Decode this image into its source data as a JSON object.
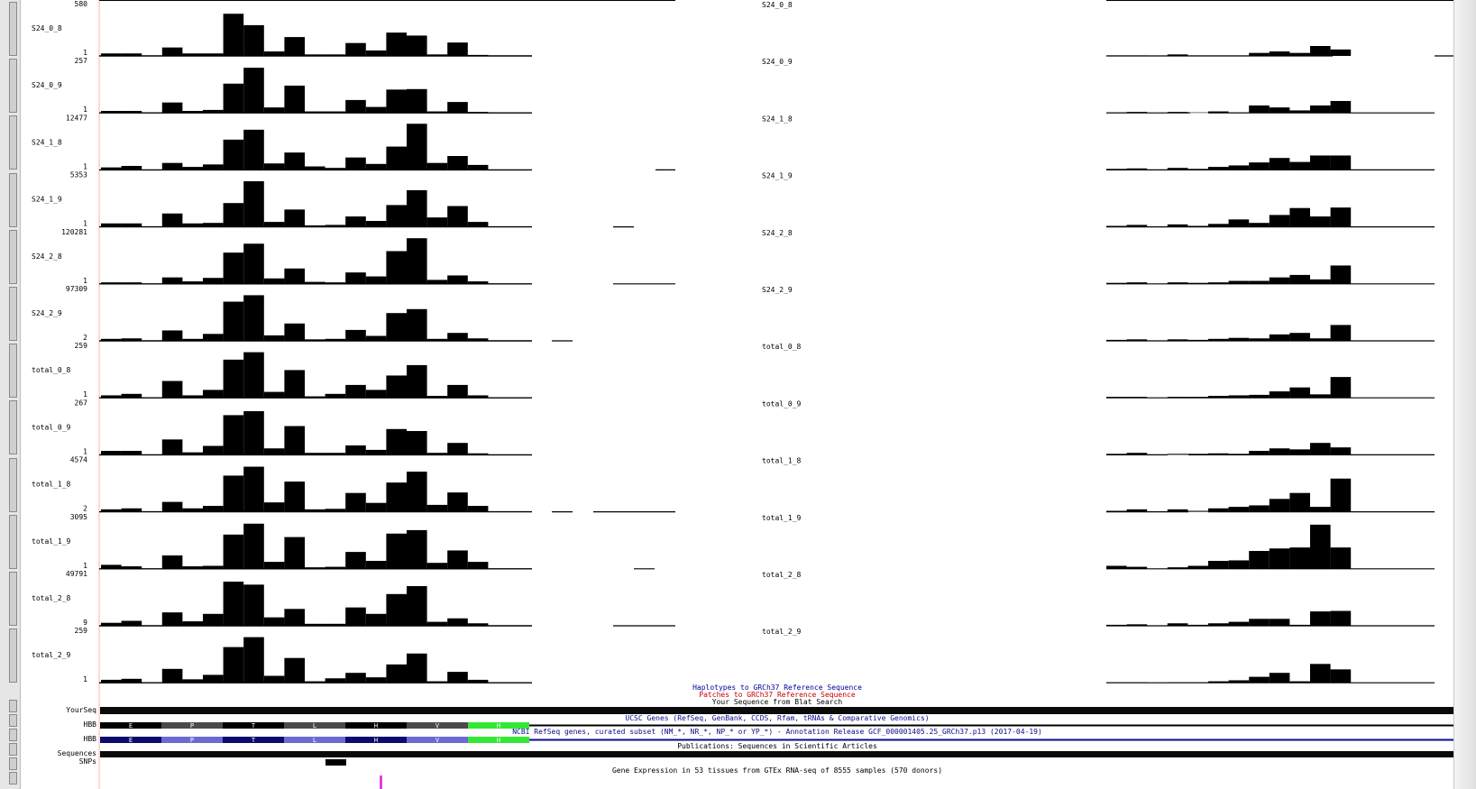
{
  "tracks": [
    {
      "name": "S24_0_8",
      "max": "580",
      "min": "1"
    },
    {
      "name": "S24_0_9",
      "max": "257",
      "min": "1"
    },
    {
      "name": "S24_1_8",
      "max": "12477",
      "min": "1"
    },
    {
      "name": "S24_1_9",
      "max": "5353",
      "min": "1"
    },
    {
      "name": "S24_2_8",
      "max": "120281",
      "min": "1"
    },
    {
      "name": "S24_2_9",
      "max": "97309",
      "min": "2"
    },
    {
      "name": "total_0_8",
      "max": "259",
      "min": "1"
    },
    {
      "name": "total_0_9",
      "max": "267",
      "min": "1"
    },
    {
      "name": "total_1_8",
      "max": "4574",
      "min": "2"
    },
    {
      "name": "total_1_9",
      "max": "3095",
      "min": "1"
    },
    {
      "name": "total_2_8",
      "max": "49791",
      "min": "9"
    },
    {
      "name": "total_2_9",
      "max": "259",
      "min": "1"
    }
  ],
  "coverage_left": [
    [
      0.05,
      0.05,
      0,
      0.17,
      0.05,
      0.05,
      0.85,
      0.62,
      0.09,
      0.38,
      0.03,
      0.03,
      0.26,
      0.11,
      0.47,
      0.41,
      0.03,
      0.27,
      0.02
    ],
    [
      0.04,
      0.04,
      0,
      0.21,
      0.04,
      0.06,
      0.59,
      0.91,
      0.11,
      0.55,
      0.03,
      0.03,
      0.26,
      0.12,
      0.47,
      0.48,
      0.03,
      0.22,
      0.02
    ],
    [
      0.05,
      0.08,
      0,
      0.14,
      0.06,
      0.11,
      0.61,
      0.81,
      0.13,
      0.35,
      0.07,
      0.04,
      0.25,
      0.12,
      0.47,
      0.93,
      0.14,
      0.28,
      0.1
    ],
    [
      0.07,
      0.07,
      0,
      0.27,
      0.07,
      0.08,
      0.48,
      0.92,
      0.1,
      0.35,
      0.03,
      0.04,
      0.21,
      0.12,
      0.44,
      0.74,
      0.19,
      0.42,
      0.1
    ],
    [
      0.03,
      0.03,
      0,
      0.13,
      0.05,
      0.12,
      0.63,
      0.81,
      0.11,
      0.31,
      0.04,
      0.03,
      0.23,
      0.15,
      0.66,
      0.92,
      0.08,
      0.17,
      0.05
    ],
    [
      0.04,
      0.05,
      0,
      0.21,
      0.04,
      0.14,
      0.79,
      0.92,
      0.11,
      0.35,
      0.03,
      0.04,
      0.22,
      0.1,
      0.56,
      0.64,
      0.04,
      0.16,
      0.05
    ],
    [
      0.05,
      0.08,
      0,
      0.34,
      0.05,
      0.16,
      0.77,
      0.92,
      0.12,
      0.56,
      0.03,
      0.08,
      0.26,
      0.16,
      0.45,
      0.66,
      0.04,
      0.26,
      0.05
    ],
    [
      0.08,
      0.08,
      0,
      0.31,
      0.05,
      0.18,
      0.8,
      0.88,
      0.13,
      0.58,
      0.04,
      0.04,
      0.19,
      0.1,
      0.52,
      0.48,
      0.04,
      0.24,
      0.03
    ],
    [
      0.05,
      0.07,
      0,
      0.2,
      0.07,
      0.12,
      0.73,
      0.91,
      0.19,
      0.61,
      0.05,
      0.06,
      0.38,
      0.18,
      0.59,
      0.81,
      0.14,
      0.39,
      0.12
    ],
    [
      0.08,
      0.05,
      0,
      0.27,
      0.05,
      0.06,
      0.69,
      0.91,
      0.14,
      0.64,
      0.03,
      0.04,
      0.34,
      0.16,
      0.71,
      0.78,
      0.12,
      0.37,
      0.14
    ],
    [
      0.06,
      0.1,
      0,
      0.27,
      0.09,
      0.24,
      0.89,
      0.83,
      0.17,
      0.34,
      0.04,
      0.04,
      0.37,
      0.24,
      0.64,
      0.8,
      0.08,
      0.15,
      0.05
    ],
    [
      0.06,
      0.08,
      0,
      0.28,
      0.07,
      0.16,
      0.72,
      0.92,
      0.14,
      0.5,
      0.03,
      0.09,
      0.2,
      0.11,
      0.37,
      0.59,
      0.03,
      0.22,
      0.06
    ]
  ],
  "coverage_right": [
    [
      0.01,
      0.01,
      0,
      0.03,
      0.01,
      0.01,
      0.01,
      0.06,
      0.09,
      0.06,
      0.2,
      0.13
    ],
    [
      0.01,
      0.02,
      0,
      0.02,
      0.01,
      0.03,
      0.01,
      0.15,
      0.11,
      0.05,
      0.15,
      0.24
    ],
    [
      0.02,
      0.03,
      0,
      0.04,
      0.02,
      0.06,
      0.09,
      0.15,
      0.24,
      0.16,
      0.29,
      0.29
    ],
    [
      0.02,
      0.04,
      0,
      0.05,
      0.02,
      0.06,
      0.15,
      0.08,
      0.24,
      0.38,
      0.21,
      0.39
    ],
    [
      0.02,
      0.03,
      0,
      0.03,
      0.02,
      0.03,
      0.06,
      0.06,
      0.13,
      0.18,
      0.09,
      0.37
    ],
    [
      0.02,
      0.03,
      0,
      0.03,
      0.02,
      0.04,
      0.06,
      0.05,
      0.13,
      0.16,
      0.05,
      0.32
    ],
    [
      0.02,
      0.02,
      0,
      0.02,
      0.02,
      0.04,
      0.05,
      0.06,
      0.13,
      0.21,
      0.07,
      0.42
    ],
    [
      0.02,
      0.04,
      0,
      0.02,
      0.02,
      0.03,
      0.02,
      0.08,
      0.13,
      0.11,
      0.24,
      0.15
    ],
    [
      0.02,
      0.05,
      0,
      0.05,
      0.02,
      0.07,
      0.1,
      0.13,
      0.26,
      0.38,
      0.1,
      0.67
    ],
    [
      0.06,
      0.04,
      0,
      0.03,
      0.06,
      0.16,
      0.17,
      0.36,
      0.41,
      0.43,
      0.89,
      0.43
    ],
    [
      0.02,
      0.03,
      0,
      0.05,
      0.02,
      0.05,
      0.08,
      0.14,
      0.14,
      0.02,
      0.29,
      0.3
    ],
    [
      0.01,
      0.01,
      0,
      0.01,
      0.01,
      0.03,
      0.05,
      0.12,
      0.2,
      0.03,
      0.38,
      0.27
    ]
  ],
  "mid_labels": {
    "haplotypes": "Haplotypes to GRCh37 Reference Sequence",
    "patches": "Patches to GRCh37 Reference Sequence",
    "blat": "Your Sequence from Blat Search",
    "ucsc_genes": "UCSC Genes (RefSeq, GenBank, CCDS, Rfam, tRNAs & Comparative Genomics)",
    "refseq": "NCBI RefSeq genes, curated subset (NM_*, NR_*, NP_* or YP_*) - Annotation Release GCF_000001405.25_GRCh37.p13 (2017-04-19)",
    "publications": "Publications: Sequences in Scientific Articles",
    "gtex": "Gene Expression in 53 tissues from GTEx RNA-seq of 8555 samples (570 donors)"
  },
  "left_labels": {
    "yourseq": "YourSeq",
    "hbb1": "HBB",
    "hbb2": "HBB",
    "sequences": "Sequences",
    "snps": "SNPs"
  },
  "gene_segments": [
    "E",
    "P",
    "T",
    "L",
    "H",
    "V",
    "H"
  ],
  "colors": {
    "haplotypes": "#00009a",
    "patches": "#c80000",
    "refseq": "#0a0a8c",
    "gene_green": "#33e833",
    "gene_gray": "#4a4a4a",
    "gene_navy": "#0b0b6e",
    "gtex_marker": "#e040e0",
    "cursor_line": "#ffb0b0"
  }
}
